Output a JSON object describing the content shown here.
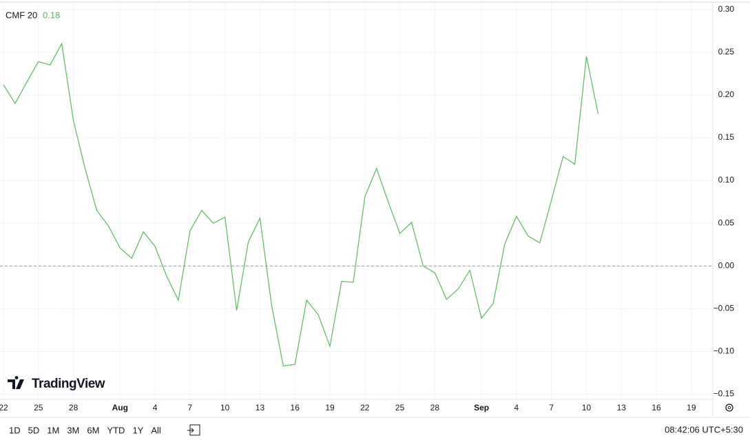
{
  "chart_data": {
    "type": "line",
    "title": "CMF 20",
    "last_value_label": "0.18",
    "x": [
      0,
      1,
      2,
      3,
      4,
      5,
      6,
      7,
      8,
      9,
      10,
      11,
      12,
      13,
      14,
      15,
      16,
      17,
      18,
      19,
      20,
      21,
      22,
      23,
      24,
      25,
      26,
      27,
      28,
      29,
      30,
      31,
      32,
      33,
      34,
      35,
      36,
      37,
      38,
      39,
      40,
      41,
      42,
      43,
      44,
      45,
      46,
      47,
      48,
      49,
      50,
      51
    ],
    "series": [
      {
        "name": "CMF 20",
        "color": "#5cb85c",
        "values": [
          0.212,
          0.19,
          0.215,
          0.239,
          0.235,
          0.26,
          0.17,
          0.114,
          0.065,
          0.047,
          0.021,
          0.009,
          0.04,
          0.023,
          -0.012,
          -0.04,
          0.041,
          0.065,
          0.05,
          0.057,
          -0.052,
          0.028,
          0.056,
          -0.046,
          -0.117,
          -0.115,
          -0.04,
          -0.057,
          -0.094,
          -0.018,
          -0.019,
          0.081,
          0.114,
          0.075,
          0.038,
          0.051,
          0.0,
          -0.008,
          -0.039,
          -0.027,
          -0.005,
          -0.061,
          -0.044,
          0.026,
          0.058,
          0.035,
          0.027,
          0.077,
          0.128,
          0.119,
          0.245,
          0.178
        ]
      }
    ],
    "xlim": [
      -0.295,
      60.84
    ],
    "xticks": [
      {
        "value": 0,
        "label": "22"
      },
      {
        "value": 3,
        "label": "25"
      },
      {
        "value": 6,
        "label": "28"
      },
      {
        "value": 10,
        "label": "Aug"
      },
      {
        "value": 13,
        "label": "4"
      },
      {
        "value": 16,
        "label": "7"
      },
      {
        "value": 19,
        "label": "10"
      },
      {
        "value": 22,
        "label": "13"
      },
      {
        "value": 25,
        "label": "16"
      },
      {
        "value": 28,
        "label": "19"
      },
      {
        "value": 31,
        "label": "22"
      },
      {
        "value": 34,
        "label": "25"
      },
      {
        "value": 37,
        "label": "28"
      },
      {
        "value": 41,
        "label": "Sep"
      },
      {
        "value": 44,
        "label": "4"
      },
      {
        "value": 47,
        "label": "7"
      },
      {
        "value": 50,
        "label": "10"
      },
      {
        "value": 53,
        "label": "13"
      },
      {
        "value": 56,
        "label": "16"
      },
      {
        "value": 59,
        "label": "19"
      }
    ],
    "ylim": [
      -0.156,
      0.307
    ],
    "yticks": [
      {
        "value": 0.3,
        "label": "0.30"
      },
      {
        "value": 0.25,
        "label": "0.25"
      },
      {
        "value": 0.2,
        "label": "0.20"
      },
      {
        "value": 0.15,
        "label": "0.15"
      },
      {
        "value": 0.1,
        "label": "0.10"
      },
      {
        "value": 0.05,
        "label": "0.05"
      },
      {
        "value": 0,
        "label": "0.00"
      },
      {
        "value": -0.05,
        "label": "−0.05"
      },
      {
        "value": -0.1,
        "label": "−0.10"
      },
      {
        "value": -0.15,
        "label": "−0.15"
      }
    ],
    "grid": true,
    "zero_line": true
  },
  "branding": "TradingView",
  "toolbar": {
    "ranges": [
      "1D",
      "5D",
      "1M",
      "3M",
      "6M",
      "YTD",
      "1Y",
      "All"
    ],
    "time": "08:42:06 UTC+5:30"
  }
}
